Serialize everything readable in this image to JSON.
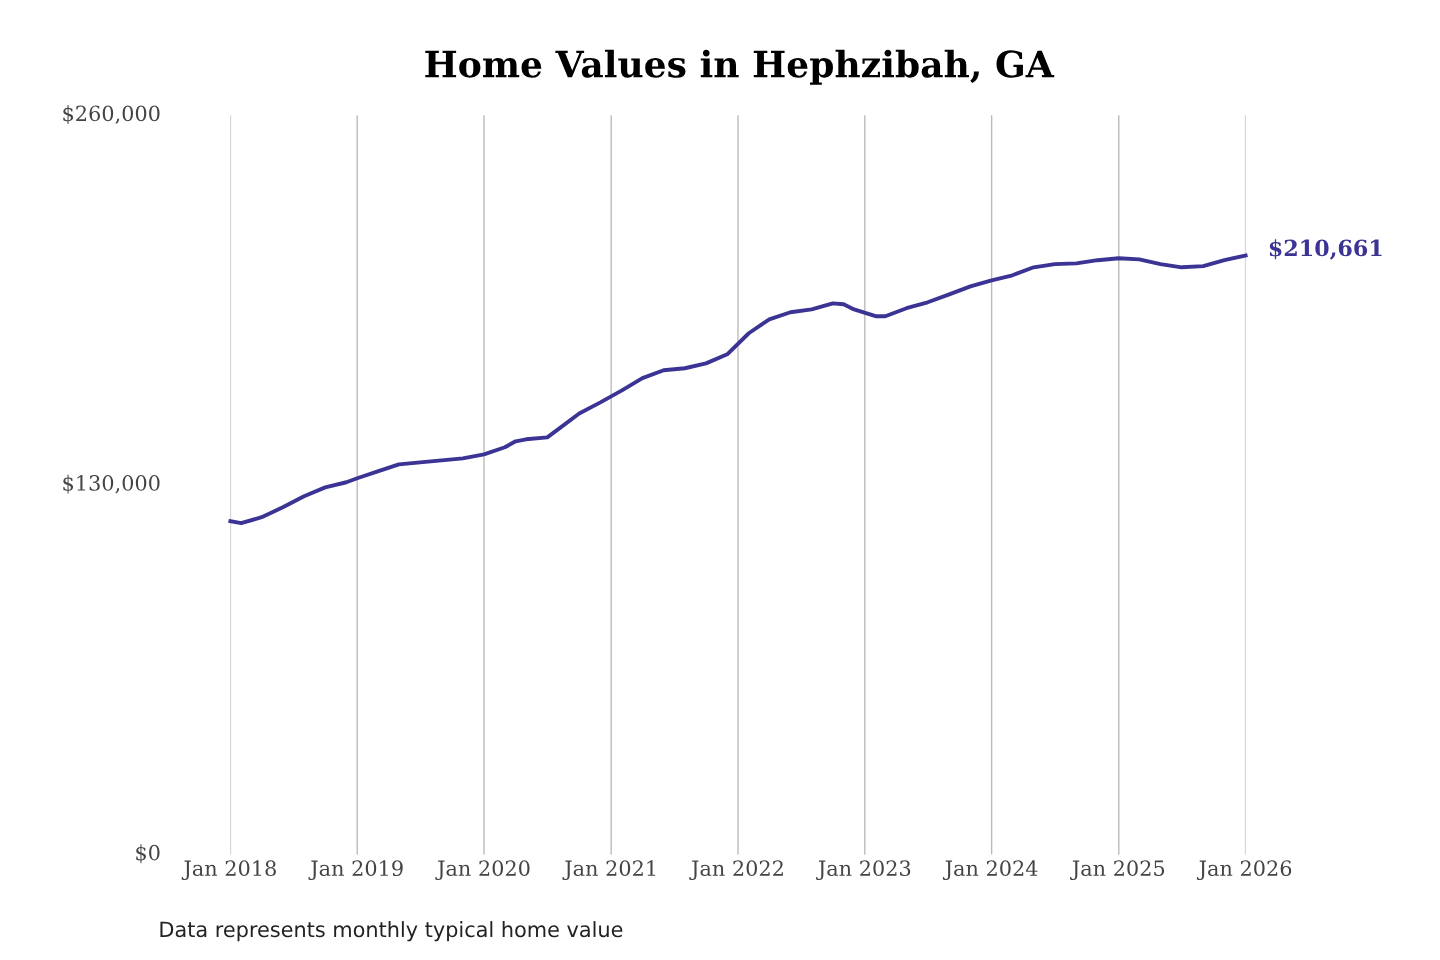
{
  "chart_data": {
    "type": "line",
    "title": "Home Values in Hephzibah, GA",
    "x": [
      "2018-01",
      "2018-02",
      "2018-04",
      "2018-06",
      "2018-08",
      "2018-10",
      "2018-12",
      "2019-01",
      "2019-03",
      "2019-05",
      "2019-07",
      "2019-09",
      "2019-11",
      "2020-01",
      "2020-03",
      "2020-04",
      "2020-05",
      "2020-07",
      "2020-08",
      "2020-10",
      "2020-12",
      "2021-02",
      "2021-04",
      "2021-06",
      "2021-08",
      "2021-10",
      "2021-12",
      "2022-02",
      "2022-04",
      "2022-06",
      "2022-08",
      "2022-10",
      "2022-11",
      "2022-12",
      "2023-02",
      "2023-03",
      "2023-05",
      "2023-07",
      "2023-09",
      "2023-11",
      "2024-01",
      "2024-03",
      "2024-05",
      "2024-07",
      "2024-09",
      "2024-11",
      "2025-01",
      "2025-03",
      "2025-05",
      "2025-07",
      "2025-09",
      "2025-11",
      "2026-01"
    ],
    "series": [
      {
        "color": "#3b3494",
        "values": [
          117200,
          116500,
          118600,
          122100,
          126000,
          129100,
          130900,
          132300,
          134700,
          137200,
          137900,
          138600,
          139300,
          140700,
          143200,
          145300,
          146000,
          146700,
          149500,
          155100,
          159000,
          163200,
          167500,
          170300,
          171000,
          172700,
          175900,
          183300,
          188200,
          190700,
          191700,
          193800,
          193500,
          191700,
          189300,
          189300,
          192100,
          194200,
          197000,
          199800,
          201900,
          203700,
          206500,
          207600,
          207900,
          209000,
          209700,
          209300,
          207600,
          206500,
          206900,
          209000,
          210661
        ]
      }
    ],
    "xlim": [
      "2018-01",
      "2026-01"
    ],
    "xticks": [
      {
        "value": "2018-01",
        "label": "Jan 2018"
      },
      {
        "value": "2019-01",
        "label": "Jan 2019"
      },
      {
        "value": "2020-01",
        "label": "Jan 2020"
      },
      {
        "value": "2021-01",
        "label": "Jan 2021"
      },
      {
        "value": "2022-01",
        "label": "Jan 2022"
      },
      {
        "value": "2023-01",
        "label": "Jan 2023"
      },
      {
        "value": "2024-01",
        "label": "Jan 2024"
      },
      {
        "value": "2025-01",
        "label": "Jan 2025"
      },
      {
        "value": "2026-01",
        "label": "Jan 2026"
      }
    ],
    "ylim": [
      0,
      260000
    ],
    "yticks": [
      {
        "value": 0,
        "label": "$0"
      },
      {
        "value": 130000,
        "label": "$130,000"
      },
      {
        "value": 260000,
        "label": "$260,000"
      }
    ],
    "grid": "x",
    "legend": false,
    "marker": "none",
    "line_style": "solid",
    "annotations": [
      {
        "text": "$210,661",
        "x": "2026-01",
        "y": 210661
      },
      "Data represents monthly typical home value"
    ]
  }
}
